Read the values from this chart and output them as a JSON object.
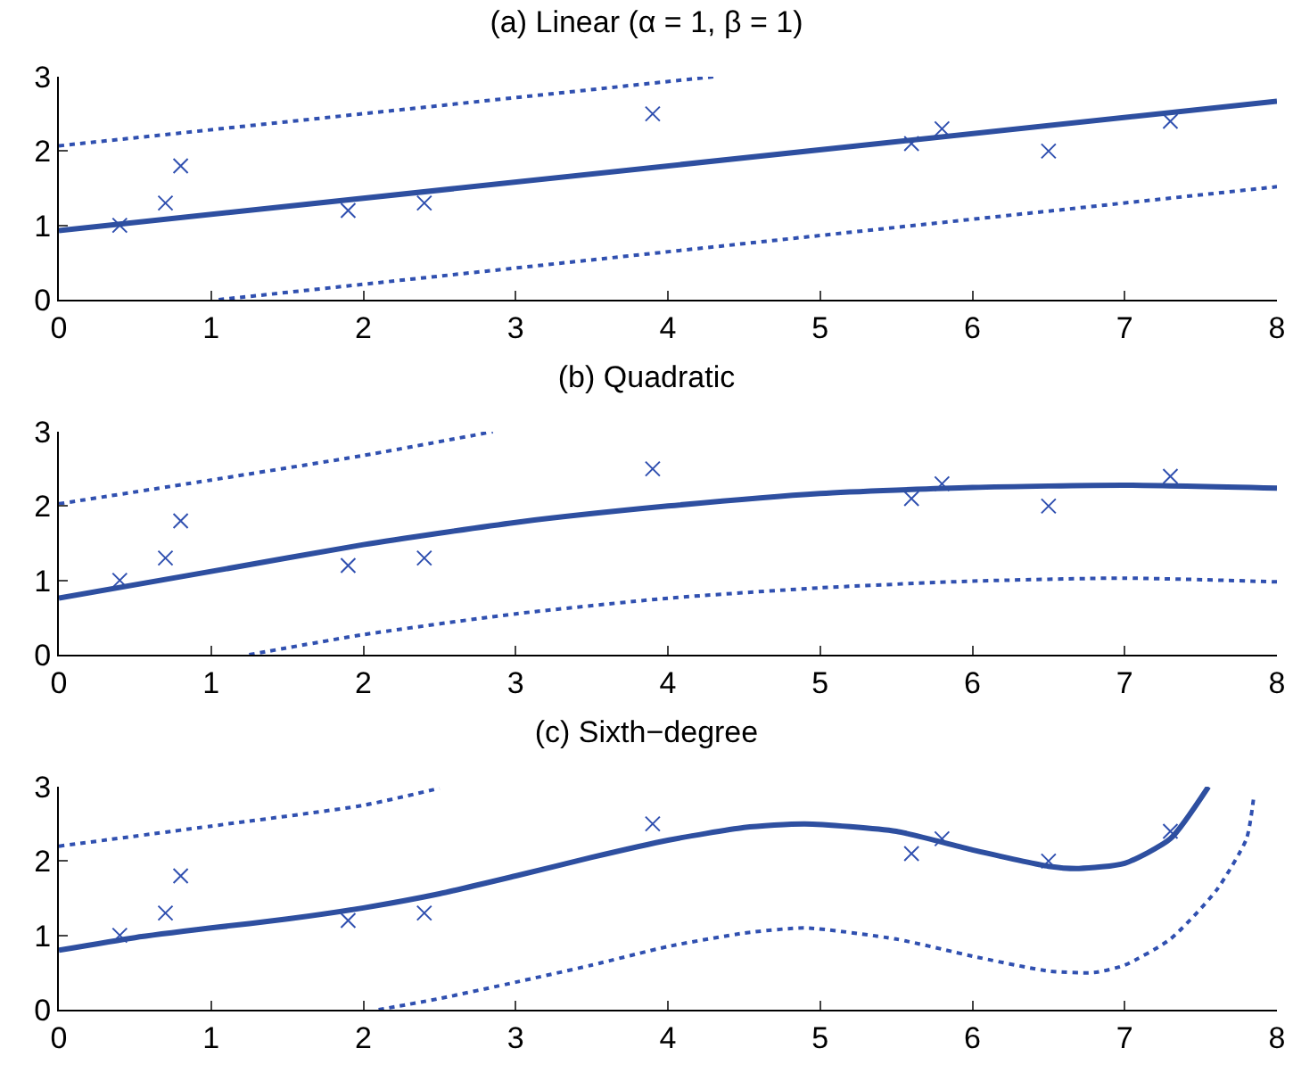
{
  "chart_data": [
    {
      "type": "scatter",
      "title": "(a) Linear (α = 1, β = 1)",
      "xlim": [
        0,
        8
      ],
      "ylim": [
        0,
        3
      ],
      "xticks": [
        0,
        1,
        2,
        3,
        4,
        5,
        6,
        7,
        8
      ],
      "yticks": [
        0,
        1,
        2,
        3
      ],
      "grid": false,
      "series": [
        {
          "marker": "cross",
          "color": "#3050b0",
          "x": [
            0.4,
            0.7,
            0.8,
            1.9,
            2.4,
            3.9,
            5.6,
            5.8,
            6.5,
            7.3
          ],
          "values": [
            1.0,
            1.3,
            1.8,
            1.2,
            1.3,
            2.5,
            2.1,
            2.3,
            2.0,
            2.4
          ]
        },
        {
          "type": "line",
          "line_style": "solid",
          "color": "#2e4fa0",
          "x": [
            0,
            8
          ],
          "values": [
            0.93,
            2.67
          ]
        },
        {
          "type": "line",
          "line_style": "dotted",
          "color": "#3050b0",
          "x": [
            0,
            4.3
          ],
          "values": [
            2.07,
            3.0
          ]
        },
        {
          "type": "line",
          "line_style": "dotted",
          "color": "#3050b0",
          "x": [
            1.05,
            8
          ],
          "values": [
            0,
            1.52
          ]
        }
      ]
    },
    {
      "type": "scatter",
      "title": "(b) Quadratic",
      "xlim": [
        0,
        8
      ],
      "ylim": [
        0,
        3
      ],
      "xticks": [
        0,
        1,
        2,
        3,
        4,
        5,
        6,
        7,
        8
      ],
      "yticks": [
        0,
        1,
        2,
        3
      ],
      "grid": false,
      "series": [
        {
          "marker": "cross",
          "color": "#3050b0",
          "x": [
            0.4,
            0.7,
            0.8,
            1.9,
            2.4,
            3.9,
            5.6,
            5.8,
            6.5,
            7.3
          ],
          "values": [
            1.0,
            1.3,
            1.8,
            1.2,
            1.3,
            2.5,
            2.1,
            2.3,
            2.0,
            2.4
          ]
        },
        {
          "type": "line",
          "line_style": "solid",
          "color": "#2e4fa0",
          "x": [
            0,
            1,
            2,
            3,
            4,
            5,
            6,
            7,
            8
          ],
          "values": [
            0.76,
            1.12,
            1.48,
            1.78,
            2.0,
            2.17,
            2.25,
            2.28,
            2.24
          ]
        },
        {
          "type": "line",
          "line_style": "dotted",
          "color": "#3050b0",
          "x": [
            0,
            1,
            2,
            2.85
          ],
          "values": [
            2.03,
            2.35,
            2.68,
            3.0
          ]
        },
        {
          "type": "line",
          "line_style": "dotted",
          "color": "#3050b0",
          "x": [
            1.25,
            2,
            3,
            4,
            5,
            6,
            7,
            8
          ],
          "values": [
            0,
            0.27,
            0.55,
            0.76,
            0.9,
            0.99,
            1.03,
            0.98
          ]
        }
      ]
    },
    {
      "type": "scatter",
      "title": "(c) Sixth−degree",
      "xlim": [
        0,
        8
      ],
      "ylim": [
        0,
        3
      ],
      "xticks": [
        0,
        1,
        2,
        3,
        4,
        5,
        6,
        7,
        8
      ],
      "yticks": [
        0,
        1,
        2,
        3
      ],
      "grid": false,
      "series": [
        {
          "marker": "cross",
          "color": "#3050b0",
          "x": [
            0.4,
            0.7,
            0.8,
            1.9,
            2.4,
            3.9,
            5.6,
            5.8,
            6.5,
            7.3
          ],
          "values": [
            1.0,
            1.3,
            1.8,
            1.2,
            1.3,
            2.5,
            2.1,
            2.3,
            2.0,
            2.4
          ]
        },
        {
          "type": "line",
          "line_style": "solid",
          "color": "#2e4fa0",
          "x": [
            0,
            0.5,
            1,
            1.5,
            2,
            2.5,
            3,
            3.5,
            4,
            4.5,
            4.9,
            5.5,
            6,
            6.5,
            6.7,
            7,
            7.3,
            7.55
          ],
          "values": [
            0.8,
            0.97,
            1.1,
            1.22,
            1.37,
            1.56,
            1.8,
            2.05,
            2.28,
            2.45,
            2.5,
            2.4,
            2.15,
            1.93,
            1.9,
            1.97,
            2.3,
            3.0
          ]
        },
        {
          "type": "line",
          "line_style": "dotted",
          "color": "#3050b0",
          "x": [
            0,
            1,
            2,
            2.5
          ],
          "values": [
            2.2,
            2.47,
            2.75,
            2.98
          ]
        },
        {
          "type": "line",
          "line_style": "dotted",
          "color": "#3050b0",
          "x": [
            2.1,
            2.5,
            3,
            3.5,
            4,
            4.5,
            4.9,
            5.5,
            6,
            6.5,
            6.8,
            7,
            7.3,
            7.6,
            7.8,
            7.85
          ],
          "values": [
            0,
            0.15,
            0.37,
            0.6,
            0.85,
            1.03,
            1.1,
            0.95,
            0.72,
            0.52,
            0.5,
            0.6,
            0.95,
            1.6,
            2.3,
            2.9
          ]
        }
      ]
    }
  ]
}
